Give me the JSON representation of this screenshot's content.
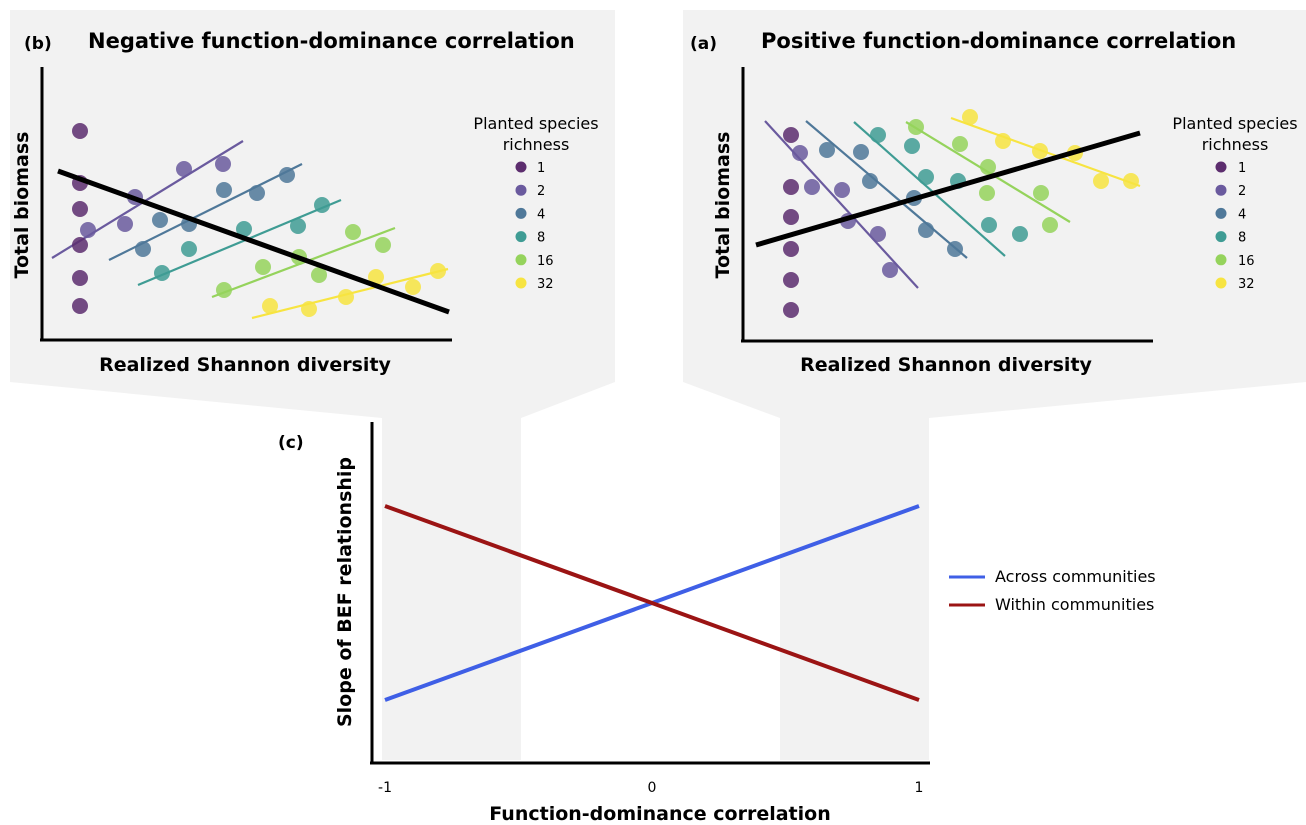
{
  "panel_b": {
    "letter": "(b)",
    "title": "Negative function-dominance correlation",
    "ylabel": "Total biomass",
    "xlabel": "Realized Shannon diversity"
  },
  "panel_a": {
    "letter": "(a)",
    "title": "Positive function-dominance correlation",
    "ylabel": "Total biomass",
    "xlabel": "Realized Shannon diversity"
  },
  "legend_richness": {
    "title_line1": "Planted species",
    "title_line2": "richness",
    "levels": [
      {
        "label": "1",
        "color": "#5c2d6e"
      },
      {
        "label": "2",
        "color": "#6a5a9e"
      },
      {
        "label": "4",
        "color": "#4f7899"
      },
      {
        "label": "8",
        "color": "#3f9c94"
      },
      {
        "label": "16",
        "color": "#95d35c"
      },
      {
        "label": "32",
        "color": "#f7e441"
      }
    ]
  },
  "panel_c": {
    "letter": "(c)",
    "ylabel": "Slope of BEF relationship",
    "xlabel": "Function-dominance correlation",
    "xticks": [
      "-1",
      "0",
      "1"
    ]
  },
  "chart_data": {
    "type": "line",
    "xlabel": "Function-dominance correlation",
    "ylabel": "Slope of BEF relationship",
    "x": [
      -1,
      0,
      1
    ],
    "xlim": [
      -1,
      1
    ],
    "series": [
      {
        "name": "Across communities",
        "color": "#3f5fe6",
        "values": [
          -1,
          0,
          1
        ]
      },
      {
        "name": "Within communities",
        "color": "#9b1414",
        "values": [
          1,
          0,
          -1
        ]
      }
    ],
    "legend_position": "right",
    "grid": false
  }
}
